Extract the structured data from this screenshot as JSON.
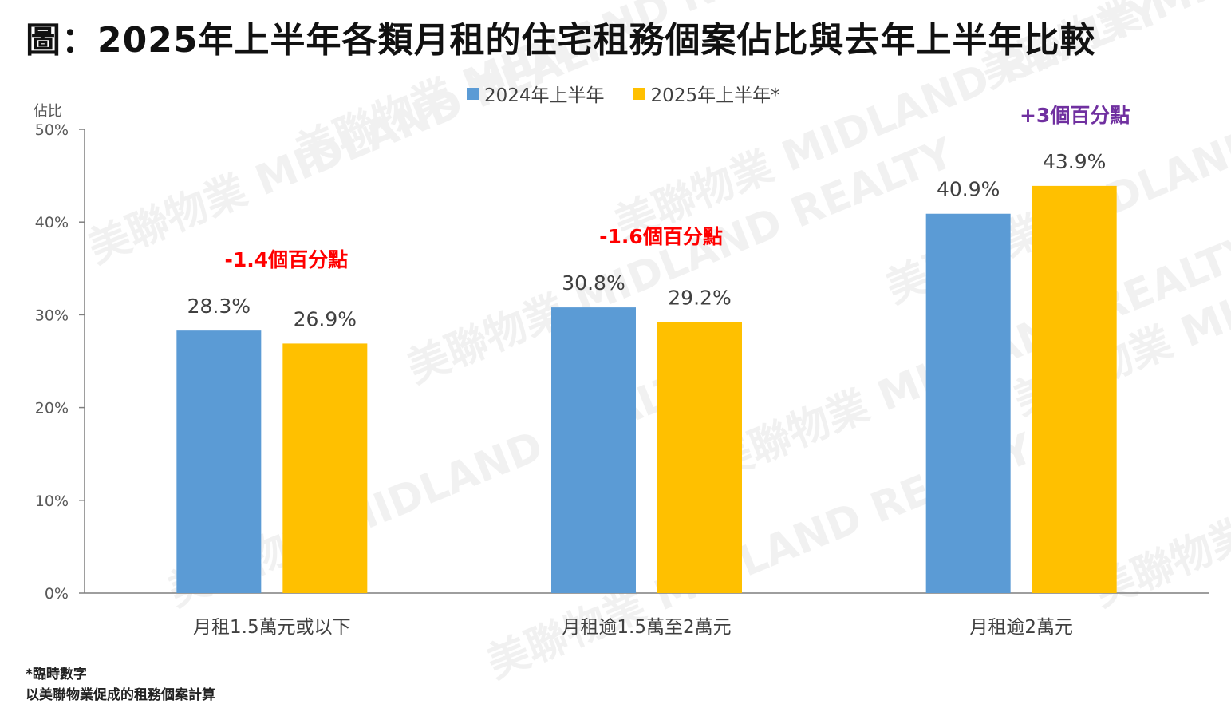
{
  "title": "圖：2025年上半年各類月租的住宅租務個案佔比與去年上半年比較",
  "footnotes": [
    "*臨時數字",
    "以美聯物業促成的租務個案計算"
  ],
  "watermark_text": "美聯物業 MIDLAND REALTY",
  "colors": {
    "series_2024": "#5B9BD5",
    "series_2025": "#FFC000",
    "decrease_annotation": "#FF0000",
    "increase_annotation": "#7030A0",
    "axis": "#7F7F7F",
    "text": "#404040"
  },
  "chart_data": {
    "type": "bar",
    "ylabel": "佔比",
    "ylim": [
      0,
      50
    ],
    "yticks": [
      "0%",
      "10%",
      "20%",
      "30%",
      "40%",
      "50%"
    ],
    "categories": [
      "月租1.5萬元或以下",
      "月租逾1.5萬至2萬元",
      "月租逾2萬元"
    ],
    "series": [
      {
        "name": "2024年上半年",
        "values": [
          28.3,
          30.8,
          40.9
        ],
        "labels": [
          "28.3%",
          "30.8%",
          "40.9%"
        ]
      },
      {
        "name": "2025年上半年*",
        "values": [
          26.9,
          29.2,
          43.9
        ],
        "labels": [
          "26.9%",
          "29.2%",
          "43.9%"
        ]
      }
    ],
    "annotations": [
      {
        "text": "-1.4個百分點",
        "category_index": 0,
        "sign": "decrease"
      },
      {
        "text": "-1.6個百分點",
        "category_index": 1,
        "sign": "decrease"
      },
      {
        "text": "+3個百分點",
        "category_index": 2,
        "sign": "increase"
      }
    ],
    "legend": "top",
    "grid": false
  }
}
